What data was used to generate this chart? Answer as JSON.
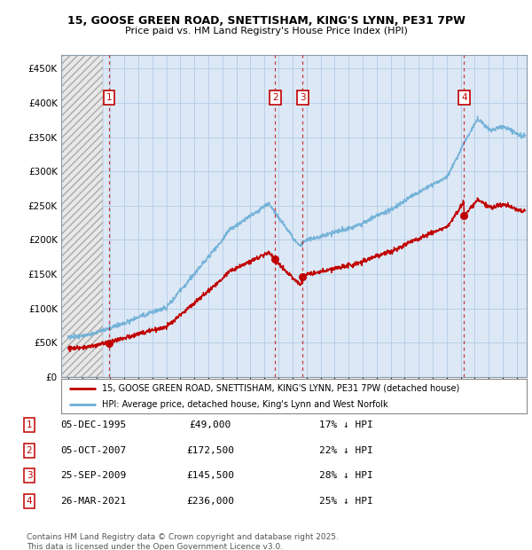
{
  "title_line1": "15, GOOSE GREEN ROAD, SNETTISHAM, KING'S LYNN, PE31 7PW",
  "title_line2": "Price paid vs. HM Land Registry's House Price Index (HPI)",
  "ylim": [
    0,
    470000
  ],
  "yticks": [
    0,
    50000,
    100000,
    150000,
    200000,
    250000,
    300000,
    350000,
    400000,
    450000
  ],
  "ytick_labels": [
    "£0",
    "£50K",
    "£100K",
    "£150K",
    "£200K",
    "£250K",
    "£300K",
    "£350K",
    "£400K",
    "£450K"
  ],
  "xlim_start": 1992.5,
  "xlim_end": 2025.7,
  "hpi_color": "#6baed6",
  "price_color": "#c00000",
  "background_color": "#dce8f5",
  "grid_color": "#b8cfe8",
  "purchase_markers": [
    {
      "num": 1,
      "year": 1995.92,
      "price": 49000
    },
    {
      "num": 2,
      "year": 2007.76,
      "price": 172500
    },
    {
      "num": 3,
      "year": 2009.73,
      "price": 145500
    },
    {
      "num": 4,
      "year": 2021.23,
      "price": 236000
    }
  ],
  "legend1_label": "15, GOOSE GREEN ROAD, SNETTISHAM, KING'S LYNN, PE31 7PW (detached house)",
  "legend2_label": "HPI: Average price, detached house, King's Lynn and West Norfolk",
  "footer_line1": "Contains HM Land Registry data © Crown copyright and database right 2025.",
  "footer_line2": "This data is licensed under the Open Government Licence v3.0.",
  "table_rows": [
    {
      "num": 1,
      "date": "05-DEC-1995",
      "price": "£49,000",
      "pct": "17% ↓ HPI"
    },
    {
      "num": 2,
      "date": "05-OCT-2007",
      "price": "£172,500",
      "pct": "22% ↓ HPI"
    },
    {
      "num": 3,
      "date": "25-SEP-2009",
      "price": "£145,500",
      "pct": "28% ↓ HPI"
    },
    {
      "num": 4,
      "date": "26-MAR-2021",
      "price": "£236,000",
      "pct": "25% ↓ HPI"
    }
  ]
}
